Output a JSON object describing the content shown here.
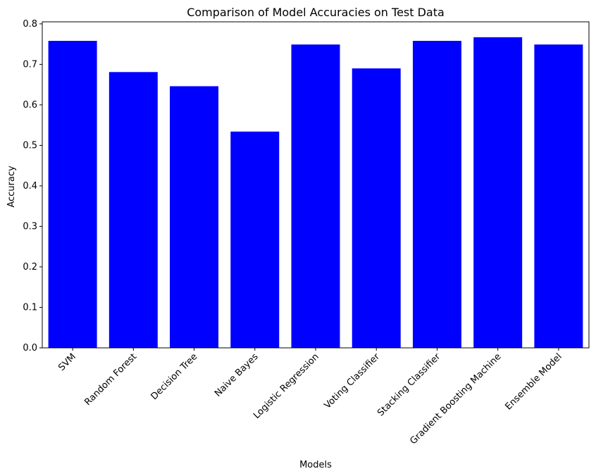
{
  "chart_data": {
    "type": "bar",
    "title": "Comparison of Model Accuracies on Test Data",
    "xlabel": "Models",
    "ylabel": "Accuracy",
    "categories": [
      "SVM",
      "Random Forest",
      "Decision Tree",
      "Naive Bayes",
      "Logistic Regression",
      "Voting Classifier",
      "Stacking Classifier",
      "Gradient Boosting Machine",
      "Ensemble Model"
    ],
    "values": [
      0.758,
      0.681,
      0.646,
      0.534,
      0.749,
      0.69,
      0.758,
      0.767,
      0.749
    ],
    "yticks": [
      0.0,
      0.1,
      0.2,
      0.3,
      0.4,
      0.5,
      0.6,
      0.7,
      0.8
    ],
    "ytick_labels": [
      "0.0",
      "0.1",
      "0.2",
      "0.3",
      "0.4",
      "0.5",
      "0.6",
      "0.7",
      "0.8"
    ],
    "ylim": [
      0,
      0.805
    ],
    "bar_color": "#0000ff",
    "grid": false,
    "legend": "none"
  }
}
